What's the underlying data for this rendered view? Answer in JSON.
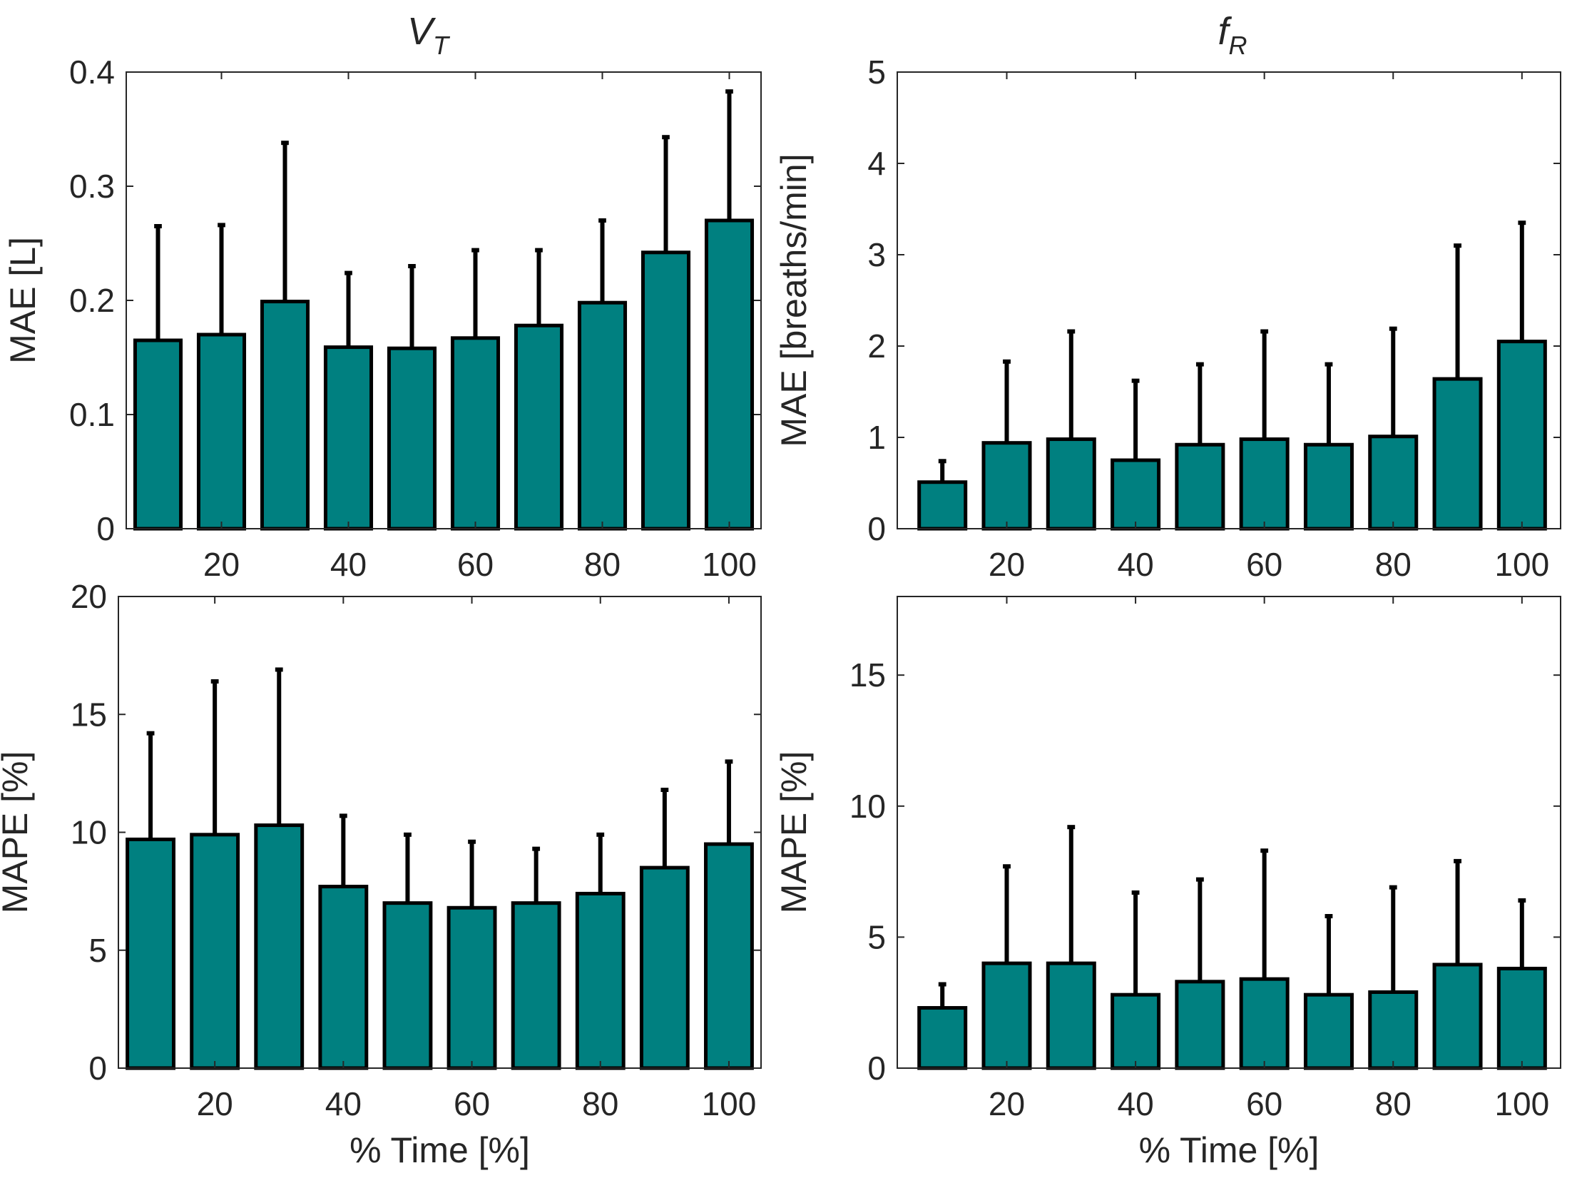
{
  "figure": {
    "column_titles": [
      {
        "main": "V",
        "sub": "T"
      },
      {
        "main": "f",
        "sub": "R"
      }
    ],
    "bar_color": "#008080",
    "edge_color": "#000000"
  },
  "chart_data": [
    {
      "type": "bar",
      "panel": "top-left",
      "title": "",
      "xlabel": "",
      "ylabel": "MAE [L]",
      "categories": [
        10,
        20,
        30,
        40,
        50,
        60,
        70,
        80,
        90,
        100
      ],
      "values": [
        0.165,
        0.17,
        0.199,
        0.159,
        0.158,
        0.167,
        0.178,
        0.198,
        0.242,
        0.27
      ],
      "error_upper": [
        0.265,
        0.266,
        0.338,
        0.224,
        0.23,
        0.244,
        0.244,
        0.27,
        0.343,
        0.383
      ],
      "xlim": [
        5,
        105
      ],
      "ylim": [
        0,
        0.4
      ],
      "yticks": [
        "0",
        "0.1",
        "0.2",
        "0.3",
        "0.4"
      ],
      "xticks": [
        "20",
        "40",
        "60",
        "80",
        "100"
      ],
      "grid": false
    },
    {
      "type": "bar",
      "panel": "top-right",
      "title": "",
      "xlabel": "",
      "ylabel": "MAE [breaths/min]",
      "categories": [
        10,
        20,
        30,
        40,
        50,
        60,
        70,
        80,
        90,
        100
      ],
      "values": [
        0.51,
        0.94,
        0.98,
        0.75,
        0.92,
        0.98,
        0.92,
        1.01,
        1.64,
        2.05
      ],
      "error_upper": [
        0.74,
        1.83,
        2.16,
        1.62,
        1.8,
        2.16,
        1.8,
        2.19,
        3.1,
        3.35
      ],
      "xlim": [
        3,
        106
      ],
      "ylim": [
        0,
        5
      ],
      "yticks": [
        "0",
        "1",
        "2",
        "3",
        "4",
        "5"
      ],
      "xticks": [
        "20",
        "40",
        "60",
        "80",
        "100"
      ],
      "grid": false
    },
    {
      "type": "bar",
      "panel": "bottom-left",
      "title": "",
      "xlabel": "% Time [%]",
      "ylabel": "MAPE [%]",
      "categories": [
        10,
        20,
        30,
        40,
        50,
        60,
        70,
        80,
        90,
        100
      ],
      "values": [
        9.7,
        9.9,
        10.3,
        7.7,
        7.0,
        6.8,
        7.0,
        7.4,
        8.5,
        9.5
      ],
      "error_upper": [
        14.2,
        16.4,
        16.9,
        10.7,
        9.9,
        9.6,
        9.3,
        9.9,
        11.8,
        13.0
      ],
      "xlim": [
        5,
        105
      ],
      "ylim": [
        0,
        20
      ],
      "yticks": [
        "0",
        "5",
        "10",
        "15",
        "20"
      ],
      "xticks": [
        "20",
        "40",
        "60",
        "80",
        "100"
      ],
      "grid": false
    },
    {
      "type": "bar",
      "panel": "bottom-right",
      "title": "",
      "xlabel": "% Time [%]",
      "ylabel": "MAPE [%]",
      "categories": [
        10,
        20,
        30,
        40,
        50,
        60,
        70,
        80,
        90,
        100
      ],
      "values": [
        2.3,
        4.0,
        4.0,
        2.8,
        3.3,
        3.4,
        2.8,
        2.9,
        3.95,
        3.8
      ],
      "error_upper": [
        3.2,
        7.7,
        9.2,
        6.7,
        7.2,
        8.3,
        5.8,
        6.9,
        7.9,
        6.4
      ],
      "xlim": [
        3,
        106
      ],
      "ylim": [
        0,
        18
      ],
      "yticks": [
        "0",
        "5",
        "10",
        "15"
      ],
      "xticks": [
        "20",
        "40",
        "60",
        "80",
        "100"
      ],
      "grid": false
    }
  ]
}
